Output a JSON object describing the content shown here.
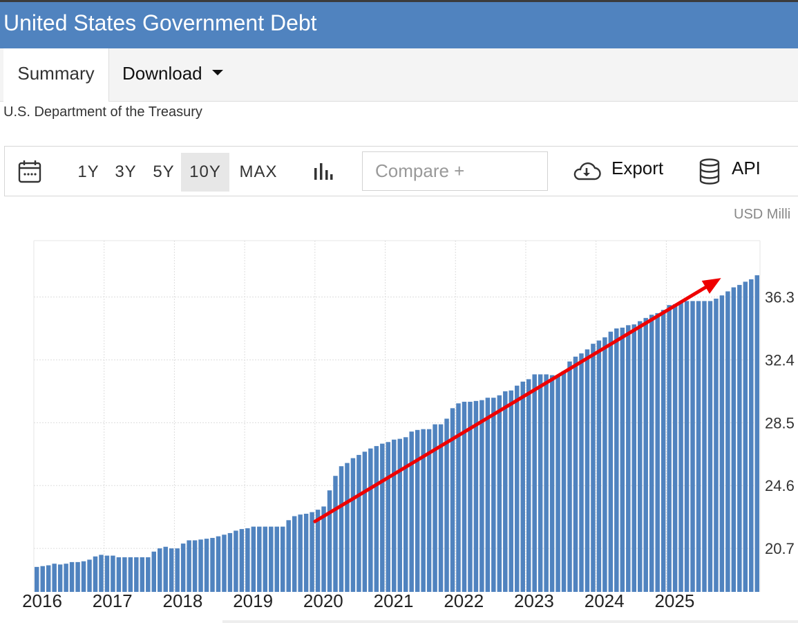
{
  "title": "United States Government Debt",
  "tabs": {
    "summary": "Summary",
    "download": "Download"
  },
  "source": "U.S. Department of the Treasury",
  "toolbar": {
    "ranges": [
      "1Y",
      "3Y",
      "5Y",
      "10Y",
      "MAX"
    ],
    "active_range": "10Y",
    "compare_placeholder": "Compare +",
    "export_label": "Export",
    "api_label": "API",
    "icons": [
      "calendar-icon",
      "bar-chart-icon",
      "cloud-download-icon",
      "database-icon"
    ]
  },
  "chart_data": {
    "type": "bar",
    "units_label": "USD Milli",
    "bar_color": "#5083bf",
    "arrow_color": "#ee0000",
    "x_tick_labels": [
      "2016",
      "2017",
      "2018",
      "2019",
      "2020",
      "2021",
      "2022",
      "2023",
      "2024",
      "2025"
    ],
    "y_tick_labels": [
      "20.7",
      "24.6",
      "28.5",
      "32.4",
      "36.3"
    ],
    "y_ticks_millions": [
      20700000,
      24600000,
      28500000,
      32400000,
      36300000
    ],
    "ylim_millions": [
      18000000,
      39800000
    ],
    "grid": true,
    "start": "2016-01",
    "values_millions": [
      19550000,
      19600000,
      19650000,
      19750000,
      19700000,
      19750000,
      19850000,
      19850000,
      19900000,
      20000000,
      20200000,
      20300000,
      20250000,
      20250000,
      20150000,
      20150000,
      20150000,
      20150000,
      20150000,
      20150000,
      20500000,
      20700000,
      20800000,
      20700000,
      20700000,
      21000000,
      21200000,
      21200000,
      21250000,
      21300000,
      21350000,
      21450000,
      21550000,
      21650000,
      21800000,
      21900000,
      21950000,
      22050000,
      22050000,
      22050000,
      22050000,
      22050000,
      22050000,
      22450000,
      22700000,
      22800000,
      22850000,
      22950000,
      23100000,
      23300000,
      24300000,
      25200000,
      25800000,
      26000000,
      26300000,
      26500000,
      26700000,
      26900000,
      27050000,
      27200000,
      27300000,
      27450000,
      27500000,
      27600000,
      27950000,
      28050000,
      28100000,
      28100000,
      28400000,
      28400000,
      28750000,
      29400000,
      29700000,
      29800000,
      29800000,
      29850000,
      29900000,
      30050000,
      30050000,
      30200000,
      30450000,
      30500000,
      30800000,
      31050000,
      31200000,
      31500000,
      31500000,
      31500000,
      31450000,
      31450000,
      31700000,
      32300000,
      32600000,
      32800000,
      33050000,
      33400000,
      33600000,
      33800000,
      34150000,
      34350000,
      34400000,
      34550000,
      34600000,
      34800000,
      35000000,
      35200000,
      35300000,
      35500000,
      35800000,
      35850000,
      36000000,
      36050000,
      36050000,
      36050000,
      36050000,
      36050000,
      36200000,
      36400000,
      36650000,
      36900000,
      37050000,
      37250000,
      37400000,
      37650000
    ],
    "trend_arrow": {
      "from": [
        "2020-01",
        22800000
      ],
      "to": [
        "2025-12",
        37650000
      ]
    }
  }
}
